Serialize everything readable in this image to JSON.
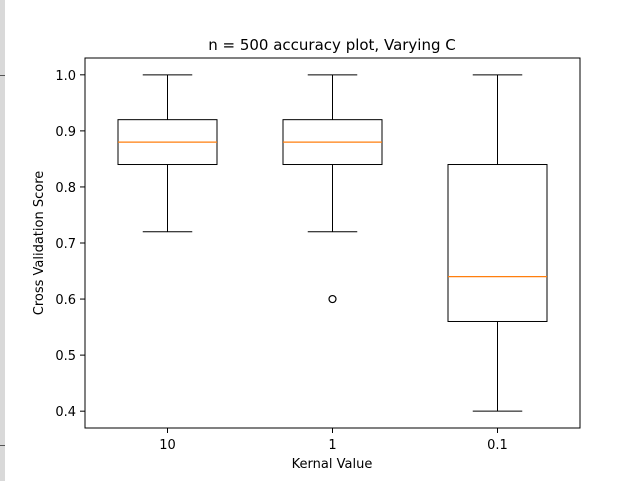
{
  "chart_data": {
    "type": "box",
    "title": "n = 500 accuracy plot, Varying C",
    "xlabel": "Kernal Value",
    "ylabel": "Cross Validation Score",
    "ylim": [
      0.37,
      1.03
    ],
    "yticks": [
      "0.4",
      "0.5",
      "0.6",
      "0.7",
      "0.8",
      "0.9",
      "1.0"
    ],
    "categories": [
      "10",
      "1",
      "0.1"
    ],
    "boxes": [
      {
        "category": "10",
        "whisker_low": 0.72,
        "q1": 0.84,
        "median": 0.88,
        "q3": 0.92,
        "whisker_high": 1.0,
        "outliers": []
      },
      {
        "category": "1",
        "whisker_low": 0.72,
        "q1": 0.84,
        "median": 0.88,
        "q3": 0.92,
        "whisker_high": 1.0,
        "outliers": [
          0.6
        ]
      },
      {
        "category": "0.1",
        "whisker_low": 0.4,
        "q1": 0.56,
        "median": 0.64,
        "q3": 0.84,
        "whisker_high": 1.0,
        "outliers": []
      }
    ],
    "colors": {
      "box": "#000000",
      "median": "#ff7f0e"
    },
    "grid": false
  }
}
